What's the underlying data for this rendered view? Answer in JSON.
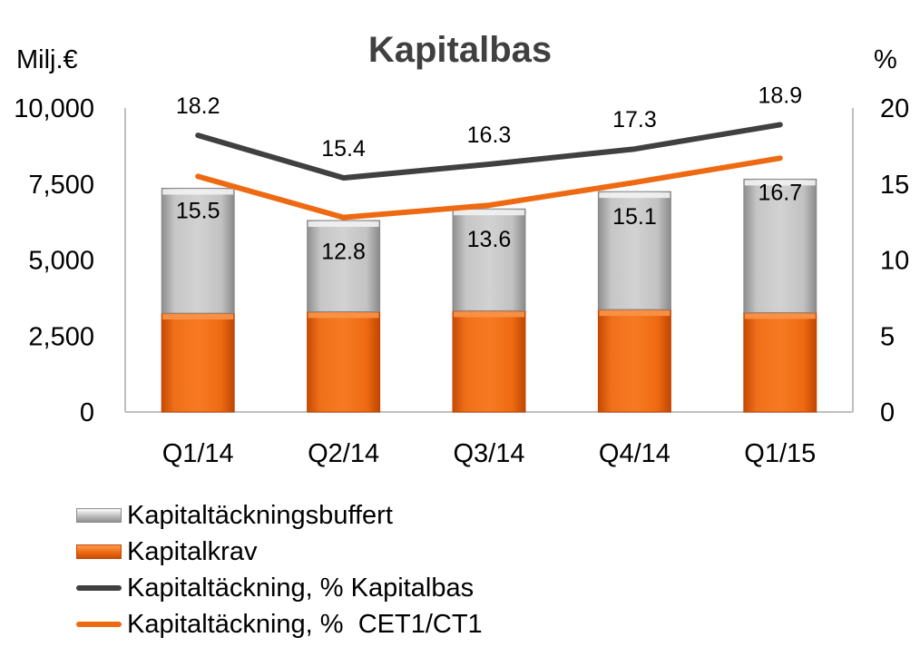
{
  "chart_data": {
    "type": "bar",
    "title": "Kapitalbas",
    "ylabel_left": "Milj.€",
    "ylabel_right": "%",
    "categories": [
      "Q1/14",
      "Q2/14",
      "Q3/14",
      "Q4/14",
      "Q1/15"
    ],
    "ylim_left": [
      0,
      10000
    ],
    "yticks_left": [
      "0",
      "2,500",
      "5,000",
      "7,500",
      "10,000"
    ],
    "ylim_right": [
      0,
      20
    ],
    "yticks_right": [
      "0",
      "5",
      "10",
      "15",
      "20"
    ],
    "stacked": true,
    "series": [
      {
        "name": "Kapitalkrav",
        "type": "bar",
        "axis": "left",
        "values": [
          3250,
          3300,
          3330,
          3370,
          3270
        ],
        "color": "#ee6a12"
      },
      {
        "name": "Kapitaltäckningsbuffert",
        "type": "bar",
        "axis": "left",
        "values": [
          4110,
          3000,
          3350,
          3880,
          4390
        ],
        "color": "#bdbdbd"
      },
      {
        "name": "Kapitaltäckning, % Kapitalbas",
        "type": "line",
        "axis": "right",
        "values": [
          18.2,
          15.4,
          16.3,
          17.3,
          18.9
        ],
        "labels": [
          "18.2",
          "15.4",
          "16.3",
          "17.3",
          "18.9"
        ],
        "color": "#404040"
      },
      {
        "name": "Kapitaltäckning, %  CET1/CT1",
        "type": "line",
        "axis": "right",
        "values": [
          15.5,
          12.8,
          13.6,
          15.1,
          16.7
        ],
        "labels": [
          "15.5",
          "12.8",
          "13.6",
          "15.1",
          "16.7"
        ],
        "color": "#ee6a12"
      }
    ],
    "grid": false,
    "legend_position": "bottom-left"
  }
}
